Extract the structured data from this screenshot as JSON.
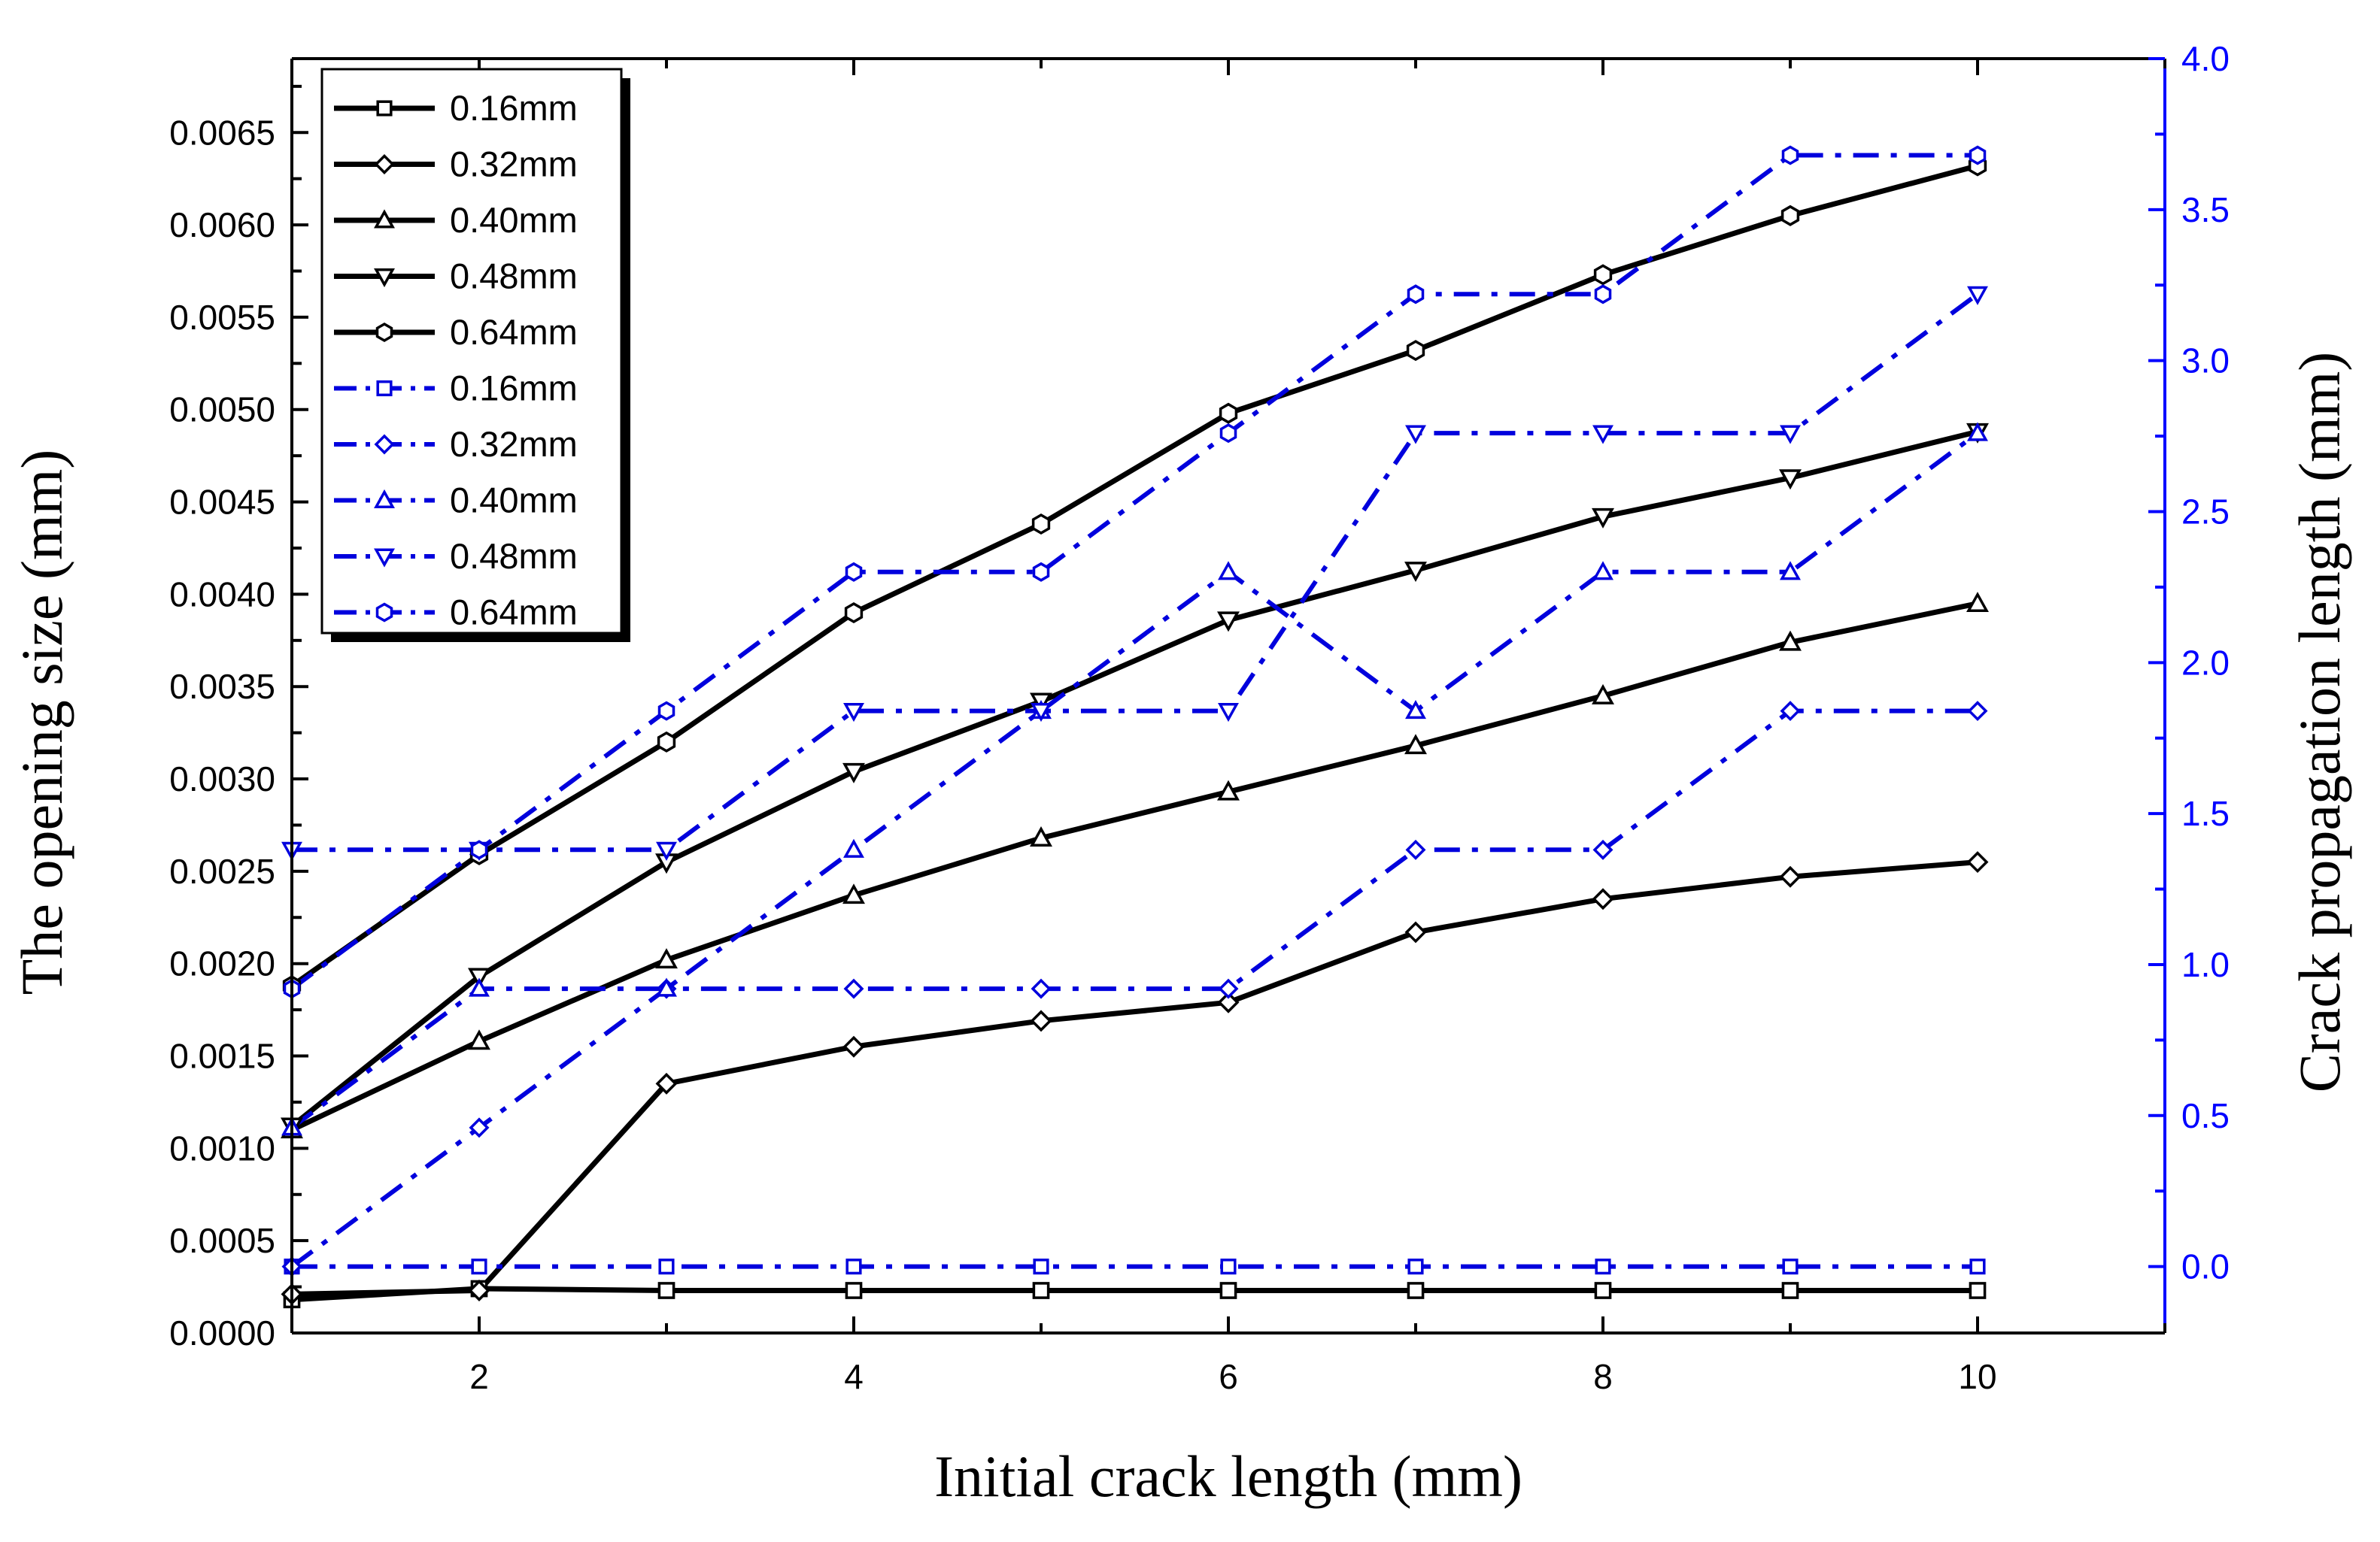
{
  "chart_data": {
    "type": "line",
    "xlabel": "Initial crack length (mm)",
    "ylabel_left": "The opening size (mm)",
    "ylabel_right": "Crack propagation length (mm)",
    "xlim": [
      1,
      11
    ],
    "ylim_left": [
      0,
      0.0069
    ],
    "ylim_right": [
      -0.22,
      4.0
    ],
    "x_ticks": [
      2,
      4,
      6,
      8,
      10
    ],
    "x_tick_labels": [
      "2",
      "4",
      "6",
      "8",
      "10"
    ],
    "y_left_ticks": [
      0,
      0.0005,
      0.001,
      0.0015,
      0.002,
      0.0025,
      0.003,
      0.0035,
      0.004,
      0.0045,
      0.005,
      0.0055,
      0.006,
      0.0065
    ],
    "y_left_tick_labels": [
      "0.0000",
      "0.0005",
      "0.0010",
      "0.0015",
      "0.0020",
      "0.0025",
      "0.0030",
      "0.0035",
      "0.0040",
      "0.0045",
      "0.0050",
      "0.0055",
      "0.0060",
      "0.0065"
    ],
    "y_right_ticks": [
      0,
      0.5,
      1,
      1.5,
      2,
      2.5,
      3,
      3.5,
      4
    ],
    "y_right_tick_labels": [
      "0.0",
      "0.5",
      "1.0",
      "1.5",
      "2.0",
      "2.5",
      "3.0",
      "3.5",
      "4.0"
    ],
    "colors": {
      "left_series": "#000000",
      "right_series": "#0000dd",
      "right_axis": "#0000ff"
    },
    "x": [
      1,
      2,
      3,
      4,
      5,
      6,
      7,
      8,
      9,
      10
    ],
    "series": [
      {
        "name": "0.16mm",
        "axis": "left",
        "marker": "square",
        "values": [
          0.00018,
          0.00024,
          0.00023,
          0.00023,
          0.00023,
          0.00023,
          0.00023,
          0.00023,
          0.00023,
          0.00023
        ]
      },
      {
        "name": "0.32mm",
        "axis": "left",
        "marker": "diamond",
        "values": [
          0.00021,
          0.00023,
          0.00135,
          0.00155,
          0.00169,
          0.00179,
          0.00217,
          0.00235,
          0.00247,
          0.00255
        ]
      },
      {
        "name": "0.40mm",
        "axis": "left",
        "marker": "triangle-up",
        "values": [
          0.0011,
          0.00158,
          0.00202,
          0.00237,
          0.00268,
          0.00293,
          0.00318,
          0.00345,
          0.00374,
          0.00395
        ]
      },
      {
        "name": "0.48mm",
        "axis": "left",
        "marker": "triangle-down",
        "values": [
          0.00112,
          0.00193,
          0.00255,
          0.00304,
          0.00342,
          0.00386,
          0.00413,
          0.00442,
          0.00463,
          0.00488
        ]
      },
      {
        "name": "0.64mm",
        "axis": "left",
        "marker": "hexagon",
        "values": [
          0.00188,
          0.00259,
          0.0032,
          0.0039,
          0.00438,
          0.00498,
          0.00532,
          0.00573,
          0.00605,
          0.00632
        ]
      },
      {
        "name": "0.16mm",
        "axis": "right",
        "marker": "square",
        "values": [
          0.0,
          0.0,
          0.0,
          0.0,
          0.0,
          0.0,
          0.0,
          0.0,
          0.0,
          0.0
        ]
      },
      {
        "name": "0.32mm",
        "axis": "right",
        "marker": "diamond",
        "values": [
          0.0,
          0.46,
          0.92,
          0.92,
          0.92,
          0.92,
          1.38,
          1.38,
          1.84,
          1.84
        ]
      },
      {
        "name": "0.40mm",
        "axis": "right",
        "marker": "triangle-up",
        "values": [
          0.46,
          0.92,
          0.92,
          1.38,
          1.84,
          2.3,
          1.84,
          2.3,
          2.3,
          2.76
        ]
      },
      {
        "name": "0.48mm",
        "axis": "right",
        "marker": "triangle-down",
        "values": [
          1.38,
          1.38,
          1.38,
          1.84,
          1.84,
          1.84,
          2.76,
          2.76,
          2.76,
          3.22
        ]
      },
      {
        "name": "0.64mm",
        "axis": "right",
        "marker": "hexagon",
        "values": [
          0.92,
          1.38,
          1.84,
          2.3,
          2.3,
          2.76,
          3.22,
          3.22,
          3.68,
          3.68
        ]
      }
    ]
  }
}
